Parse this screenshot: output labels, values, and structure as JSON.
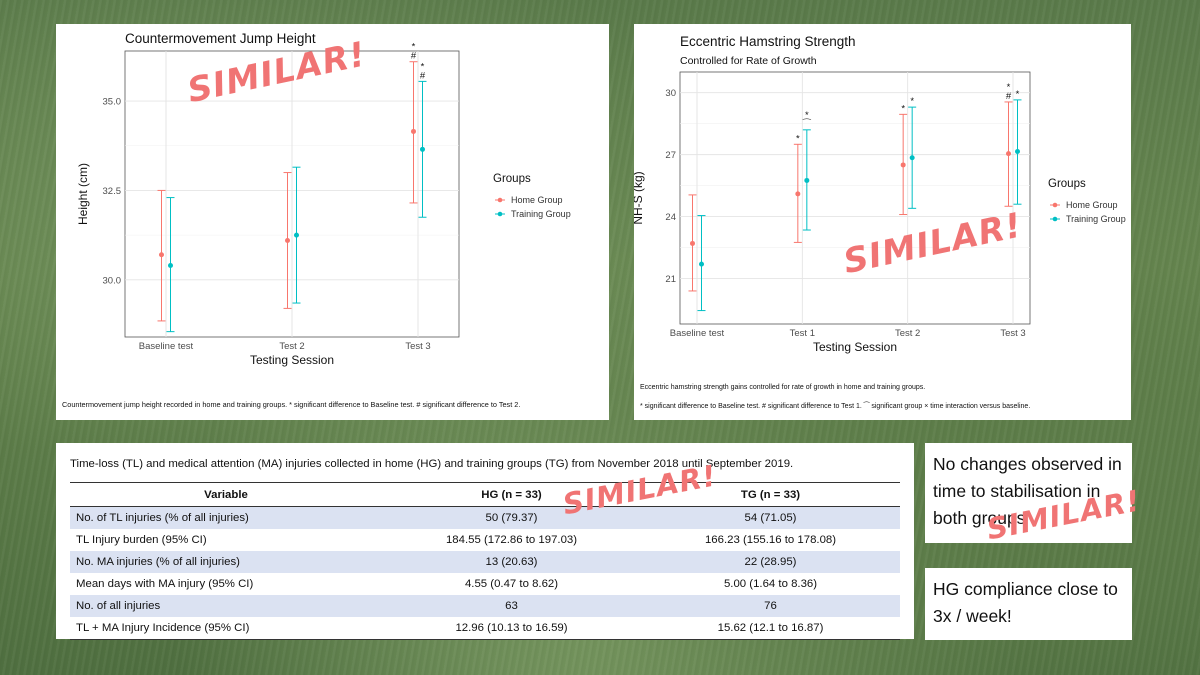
{
  "chart_data": [
    {
      "type": "scatter",
      "subtype": "point with error bars",
      "title": "Countermovement Jump Height",
      "xlabel": "Testing Session",
      "ylabel": "Height (cm)",
      "categories": [
        "Baseline test",
        "Test 2",
        "Test 3"
      ],
      "yticks": [
        "30.0",
        "32.5",
        "35.0"
      ],
      "ylim": [
        28.4,
        36.4
      ],
      "legend": {
        "title": "Groups",
        "position": "right"
      },
      "series": [
        {
          "name": "Home Group",
          "color": "#f8766d",
          "values": [
            30.7,
            31.1,
            34.15
          ],
          "lower": [
            28.85,
            29.2,
            32.15
          ],
          "upper": [
            32.5,
            33.0,
            36.1
          ]
        },
        {
          "name": "Training Group",
          "color": "#00bfc4",
          "values": [
            30.4,
            31.25,
            33.65
          ],
          "lower": [
            28.55,
            29.35,
            31.75
          ],
          "upper": [
            32.3,
            33.15,
            35.55
          ]
        }
      ],
      "annotations": [
        {
          "category": "Test 3",
          "series": "Home Group",
          "text": "*"
        },
        {
          "category": "Test 3",
          "series": "Home Group",
          "text": "#"
        },
        {
          "category": "Test 3",
          "series": "Training Group",
          "text": "*"
        },
        {
          "category": "Test 3",
          "series": "Training Group",
          "text": "#"
        }
      ],
      "grid": true,
      "caption": "Countermovement jump height recorded in home and training groups.   * significant difference to Baseline test. # significant difference to Test 2."
    },
    {
      "type": "scatter",
      "subtype": "point with error bars",
      "title": "Eccentric Hamstring Strength",
      "subtitle": "Controlled for Rate of Growth",
      "xlabel": "Testing Session",
      "ylabel": "NH-S (kg)",
      "categories": [
        "Baseline test",
        "Test 1",
        "Test 2",
        "Test 3"
      ],
      "yticks": [
        "21",
        "24",
        "27",
        "30"
      ],
      "ylim": [
        18.8,
        31.0
      ],
      "legend": {
        "title": "Groups",
        "position": "right"
      },
      "series": [
        {
          "name": "Home Group",
          "color": "#f8766d",
          "values": [
            22.7,
            25.1,
            26.5,
            27.05
          ],
          "lower": [
            20.4,
            22.75,
            24.1,
            24.5
          ],
          "upper": [
            25.05,
            27.5,
            28.95,
            29.55
          ]
        },
        {
          "name": "Training Group",
          "color": "#00bfc4",
          "values": [
            21.7,
            25.75,
            26.85,
            27.15
          ],
          "lower": [
            19.45,
            23.35,
            24.4,
            24.6
          ],
          "upper": [
            24.05,
            28.2,
            29.3,
            29.65
          ]
        }
      ],
      "annotations": [
        {
          "category": "Test 1",
          "series": "Home Group",
          "text": "*"
        },
        {
          "category": "Test 1",
          "series": "Training Group",
          "text": "*"
        },
        {
          "category": "Test 1",
          "series": "Training Group",
          "text": "⁀"
        },
        {
          "category": "Test 2",
          "series": "Home Group",
          "text": "*"
        },
        {
          "category": "Test 2",
          "series": "Training Group",
          "text": "*"
        },
        {
          "category": "Test 3",
          "series": "Home Group",
          "text": "*"
        },
        {
          "category": "Test 3",
          "series": "Home Group",
          "text": "#"
        },
        {
          "category": "Test 3",
          "series": "Training Group",
          "text": "*"
        }
      ],
      "grid": true,
      "caption1": "Eccentric hamstring strength gains controlled for rate of growth in home and training groups.",
      "caption2": "* significant difference to Baseline test. # significant difference to Test 1.  ⁀ significant group × time interaction versus baseline."
    },
    {
      "type": "table",
      "title": "Time-loss (TL) and medical attention (MA) injuries collected in home (HG) and training groups (TG) from November 2018 until September 2019.",
      "columns": [
        "Variable",
        "HG (n = 33)",
        "TG (n = 33)"
      ],
      "rows": [
        [
          "No. of TL injuries (% of all injuries)",
          "50 (79.37)",
          "54 (71.05)"
        ],
        [
          "TL Injury burden (95% CI)",
          "184.55 (172.86 to 197.03)",
          "166.23 (155.16 to 178.08)"
        ],
        [
          "No. MA injuries (% of all injuries)",
          "13 (20.63)",
          "22 (28.95)"
        ],
        [
          "Mean days with MA injury (95% CI)",
          "4.55 (0.47 to 8.62)",
          "5.00 (1.64 to 8.36)"
        ],
        [
          "No. of all injuries",
          "63",
          "76"
        ],
        [
          "TL + MA Injury Incidence (95% CI)",
          "12.96 (10.13 to 16.59)",
          "15.62 (12.1 to 16.87)"
        ]
      ]
    }
  ],
  "notes": {
    "stabilisation": "No changes observed in time to stabilisation in both groups",
    "compliance": "HG compliance close to 3x / week!"
  },
  "stamps": {
    "label": "SIMILAR!",
    "color": "#f07474"
  }
}
